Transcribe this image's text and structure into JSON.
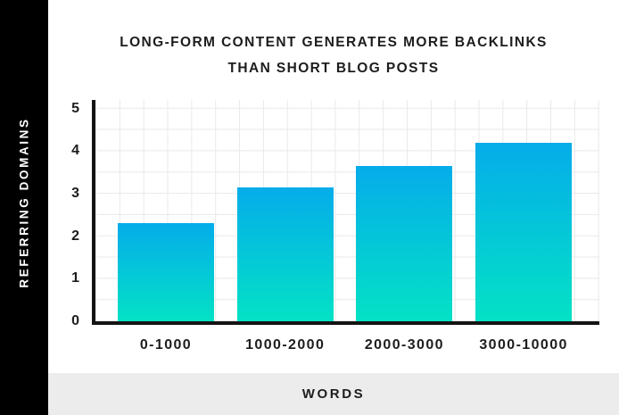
{
  "header": {
    "title_line1": "LONG-FORM CONTENT GENERATES MORE BACKLINKS",
    "title_line2": "THAN SHORT BLOG POSTS"
  },
  "y_axis": {
    "title": "REFERRING DOMAINS"
  },
  "x_axis": {
    "title": "WORDS"
  },
  "chart_data": {
    "type": "bar",
    "title": "LONG-FORM CONTENT GENERATES MORE BACKLINKS THAN SHORT BLOG POSTS",
    "categories": [
      "0-1000",
      "1000-2000",
      "2000-3000",
      "3000-10000"
    ],
    "values": [
      2.3,
      3.15,
      3.65,
      4.2
    ],
    "xlabel": "WORDS",
    "ylabel": "REFERRING DOMAINS",
    "ylim": [
      0,
      5
    ],
    "yticks": [
      0,
      1,
      2,
      3,
      4,
      5
    ],
    "grid": true,
    "legend": "none",
    "bar_gradient_top": "#05ACEA",
    "bar_gradient_bottom": "#04E2C5"
  },
  "colors": {
    "side_panel_bg": "#000000",
    "footer_bg": "#ECECEC",
    "text": "#1D1D1D",
    "grid_line": "#E9E9E9",
    "axis_line": "#141414"
  }
}
